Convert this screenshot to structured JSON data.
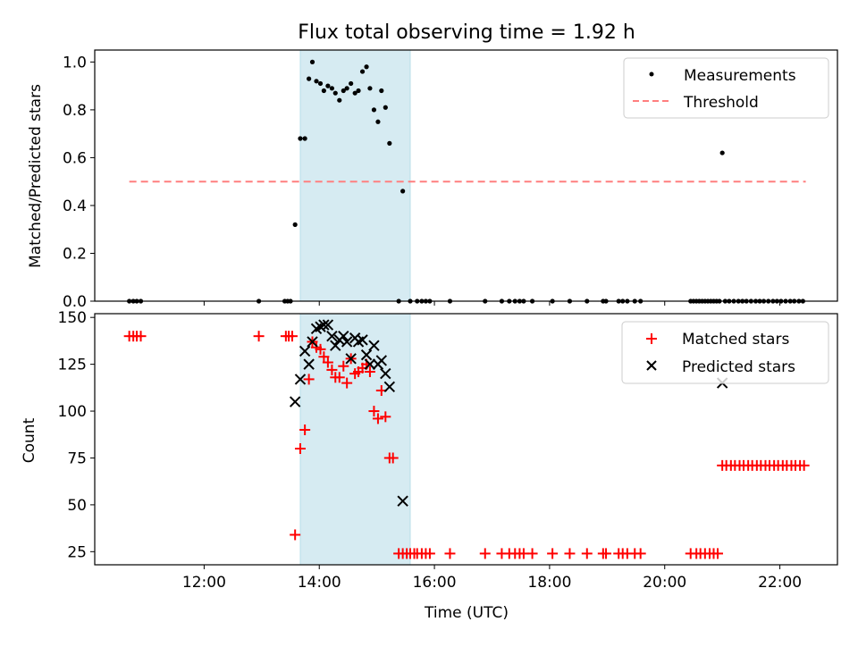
{
  "figure": {
    "title": "Flux total observing time = 1.92 h"
  },
  "chart_data": [
    {
      "type": "scatter",
      "title": "Flux total observing time = 1.92 h",
      "xlabel": "",
      "ylabel": "Matched/Predicted stars",
      "x_unit": "hours UTC",
      "xlim": [
        10.1,
        23.0
      ],
      "ylim": [
        0,
        1.05
      ],
      "yticks": [
        0.0,
        0.2,
        0.4,
        0.6,
        0.8,
        1.0
      ],
      "ytick_labels": [
        "0.0",
        "0.2",
        "0.4",
        "0.6",
        "0.8",
        "1.0"
      ],
      "shaded_span": [
        13.67,
        15.58
      ],
      "legend_position": "top-right",
      "series": [
        {
          "name": "Measurements",
          "marker": "dot",
          "color": "#000000",
          "points": [
            [
              10.7,
              0
            ],
            [
              10.77,
              0
            ],
            [
              10.83,
              0
            ],
            [
              10.9,
              0
            ],
            [
              12.95,
              0
            ],
            [
              13.4,
              0
            ],
            [
              13.45,
              0
            ],
            [
              13.5,
              0
            ],
            [
              13.58,
              0.32
            ],
            [
              13.67,
              0.68
            ],
            [
              13.75,
              0.68
            ],
            [
              13.82,
              0.93
            ],
            [
              13.88,
              1.0
            ],
            [
              13.95,
              0.92
            ],
            [
              14.02,
              0.91
            ],
            [
              14.08,
              0.88
            ],
            [
              14.15,
              0.9
            ],
            [
              14.22,
              0.89
            ],
            [
              14.28,
              0.87
            ],
            [
              14.35,
              0.84
            ],
            [
              14.42,
              0.88
            ],
            [
              14.48,
              0.89
            ],
            [
              14.55,
              0.91
            ],
            [
              14.62,
              0.87
            ],
            [
              14.68,
              0.88
            ],
            [
              14.75,
              0.96
            ],
            [
              14.82,
              0.98
            ],
            [
              14.88,
              0.89
            ],
            [
              14.95,
              0.8
            ],
            [
              15.02,
              0.75
            ],
            [
              15.08,
              0.88
            ],
            [
              15.15,
              0.81
            ],
            [
              15.22,
              0.66
            ],
            [
              15.38,
              0
            ],
            [
              15.45,
              0.46
            ],
            [
              15.58,
              0
            ],
            [
              15.7,
              0
            ],
            [
              15.78,
              0
            ],
            [
              15.85,
              0
            ],
            [
              15.92,
              0
            ],
            [
              16.27,
              0
            ],
            [
              16.88,
              0
            ],
            [
              17.17,
              0
            ],
            [
              17.3,
              0
            ],
            [
              17.4,
              0
            ],
            [
              17.48,
              0
            ],
            [
              17.55,
              0
            ],
            [
              17.7,
              0
            ],
            [
              18.05,
              0
            ],
            [
              18.35,
              0
            ],
            [
              18.65,
              0
            ],
            [
              18.93,
              0
            ],
            [
              18.98,
              0
            ],
            [
              19.2,
              0
            ],
            [
              19.27,
              0
            ],
            [
              19.35,
              0
            ],
            [
              19.48,
              0
            ],
            [
              19.58,
              0
            ],
            [
              20.45,
              0
            ],
            [
              20.5,
              0
            ],
            [
              20.55,
              0
            ],
            [
              20.6,
              0
            ],
            [
              20.65,
              0
            ],
            [
              20.7,
              0
            ],
            [
              20.75,
              0
            ],
            [
              20.8,
              0
            ],
            [
              20.85,
              0
            ],
            [
              20.9,
              0
            ],
            [
              20.95,
              0
            ],
            [
              21.0,
              0.62
            ],
            [
              21.05,
              0
            ],
            [
              21.12,
              0
            ],
            [
              21.2,
              0
            ],
            [
              21.28,
              0
            ],
            [
              21.35,
              0
            ],
            [
              21.42,
              0
            ],
            [
              21.5,
              0
            ],
            [
              21.58,
              0
            ],
            [
              21.65,
              0
            ],
            [
              21.72,
              0
            ],
            [
              21.8,
              0
            ],
            [
              21.88,
              0
            ],
            [
              21.95,
              0
            ],
            [
              22.02,
              0
            ],
            [
              22.1,
              0
            ],
            [
              22.18,
              0
            ],
            [
              22.25,
              0
            ],
            [
              22.33,
              0
            ],
            [
              22.4,
              0
            ]
          ]
        },
        {
          "name": "Threshold",
          "style": "dashed",
          "color": "#ff7f7f",
          "points": [
            [
              10.7,
              0.5
            ],
            [
              22.45,
              0.5
            ]
          ]
        }
      ]
    },
    {
      "type": "scatter",
      "xlabel": "Time (UTC)",
      "ylabel": "Count",
      "x_unit": "hours UTC",
      "xlim": [
        10.1,
        23.0
      ],
      "ylim": [
        18,
        152
      ],
      "xticks": [
        12,
        14,
        16,
        18,
        20,
        22
      ],
      "xtick_labels": [
        "12:00",
        "14:00",
        "16:00",
        "18:00",
        "20:00",
        "22:00"
      ],
      "yticks": [
        25,
        50,
        75,
        100,
        125,
        150
      ],
      "ytick_labels": [
        "25",
        "50",
        "75",
        "100",
        "125",
        "150"
      ],
      "shaded_span": [
        13.67,
        15.58
      ],
      "legend_position": "top-right",
      "series": [
        {
          "name": "Matched stars",
          "marker": "plus",
          "color": "#ff0000",
          "points": [
            [
              10.7,
              140
            ],
            [
              10.77,
              140
            ],
            [
              10.83,
              140
            ],
            [
              10.9,
              140
            ],
            [
              12.95,
              140
            ],
            [
              13.42,
              140
            ],
            [
              13.47,
              140
            ],
            [
              13.53,
              140
            ],
            [
              13.58,
              34
            ],
            [
              13.67,
              80
            ],
            [
              13.75,
              90
            ],
            [
              13.82,
              117
            ],
            [
              13.88,
              137
            ],
            [
              13.95,
              134
            ],
            [
              14.02,
              133
            ],
            [
              14.08,
              129
            ],
            [
              14.15,
              126
            ],
            [
              14.22,
              122
            ],
            [
              14.28,
              118
            ],
            [
              14.35,
              118
            ],
            [
              14.42,
              124
            ],
            [
              14.48,
              115
            ],
            [
              14.55,
              128
            ],
            [
              14.62,
              120
            ],
            [
              14.68,
              121
            ],
            [
              14.75,
              123
            ],
            [
              14.82,
              125
            ],
            [
              14.88,
              121
            ],
            [
              14.95,
              100
            ],
            [
              15.02,
              96
            ],
            [
              15.08,
              111
            ],
            [
              15.15,
              97
            ],
            [
              15.22,
              75
            ],
            [
              15.28,
              75
            ],
            [
              15.38,
              24
            ],
            [
              15.45,
              24
            ],
            [
              15.52,
              24
            ],
            [
              15.58,
              24
            ],
            [
              15.65,
              24
            ],
            [
              15.7,
              24
            ],
            [
              15.78,
              24
            ],
            [
              15.85,
              24
            ],
            [
              15.92,
              24
            ],
            [
              16.27,
              24
            ],
            [
              16.88,
              24
            ],
            [
              17.17,
              24
            ],
            [
              17.3,
              24
            ],
            [
              17.4,
              24
            ],
            [
              17.48,
              24
            ],
            [
              17.55,
              24
            ],
            [
              17.7,
              24
            ],
            [
              18.05,
              24
            ],
            [
              18.35,
              24
            ],
            [
              18.65,
              24
            ],
            [
              18.93,
              24
            ],
            [
              18.98,
              24
            ],
            [
              19.2,
              24
            ],
            [
              19.27,
              24
            ],
            [
              19.35,
              24
            ],
            [
              19.48,
              24
            ],
            [
              19.58,
              24
            ],
            [
              20.45,
              24
            ],
            [
              20.55,
              24
            ],
            [
              20.62,
              24
            ],
            [
              20.7,
              24
            ],
            [
              20.78,
              24
            ],
            [
              20.85,
              24
            ],
            [
              20.92,
              24
            ],
            [
              21.0,
              71
            ],
            [
              21.07,
              71
            ],
            [
              21.15,
              71
            ],
            [
              21.22,
              71
            ],
            [
              21.3,
              71
            ],
            [
              21.37,
              71
            ],
            [
              21.45,
              71
            ],
            [
              21.52,
              71
            ],
            [
              21.6,
              71
            ],
            [
              21.67,
              71
            ],
            [
              21.75,
              71
            ],
            [
              21.82,
              71
            ],
            [
              21.9,
              71
            ],
            [
              21.97,
              71
            ],
            [
              22.05,
              71
            ],
            [
              22.12,
              71
            ],
            [
              22.2,
              71
            ],
            [
              22.27,
              71
            ],
            [
              22.35,
              71
            ],
            [
              22.42,
              71
            ]
          ]
        },
        {
          "name": "Predicted stars",
          "marker": "x",
          "color": "#000000",
          "points": [
            [
              13.58,
              105
            ],
            [
              13.67,
              117
            ],
            [
              13.75,
              132
            ],
            [
              13.82,
              125
            ],
            [
              13.88,
              137
            ],
            [
              13.95,
              144
            ],
            [
              14.02,
              145
            ],
            [
              14.08,
              146
            ],
            [
              14.15,
              146
            ],
            [
              14.22,
              140
            ],
            [
              14.28,
              135
            ],
            [
              14.35,
              138
            ],
            [
              14.42,
              140
            ],
            [
              14.48,
              137
            ],
            [
              14.55,
              128
            ],
            [
              14.62,
              139
            ],
            [
              14.68,
              137
            ],
            [
              14.75,
              138
            ],
            [
              14.82,
              130
            ],
            [
              14.88,
              125
            ],
            [
              14.95,
              135
            ],
            [
              15.02,
              125
            ],
            [
              15.08,
              127
            ],
            [
              15.15,
              120
            ],
            [
              15.22,
              113
            ],
            [
              15.45,
              52
            ],
            [
              21.0,
              115
            ]
          ]
        }
      ]
    }
  ]
}
